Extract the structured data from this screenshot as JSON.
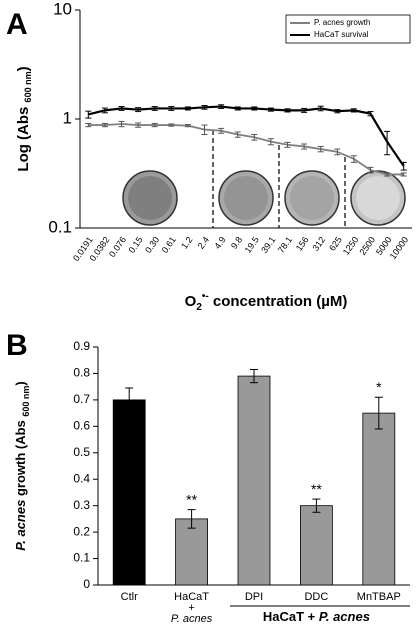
{
  "chart_data": [
    {
      "type": "line",
      "panel_label": "A",
      "y_label": [
        "Log (Abs ",
        "600 nm",
        ")"
      ],
      "x_label": [
        "O",
        "2",
        "•-",
        " concentration (µM)"
      ],
      "categories": [
        "0.0191",
        "0.0382",
        "0.076",
        "0.15",
        "0.30",
        "0.61",
        "1.2",
        "2.4",
        "4.9",
        "9.8",
        "19.5",
        "39.1",
        "78.1",
        "156",
        "312",
        "625",
        "1250",
        "2500",
        "5000",
        "10000"
      ],
      "series": [
        {
          "name": "P. acnes growth",
          "color": "#808080",
          "values": [
            0.88,
            0.88,
            0.9,
            0.88,
            0.88,
            0.88,
            0.87,
            0.8,
            0.78,
            0.72,
            0.68,
            0.62,
            0.58,
            0.56,
            0.53,
            0.5,
            0.43,
            0.34,
            0.31,
            0.31
          ],
          "errors": [
            0.03,
            0.03,
            0.05,
            0.04,
            0.03,
            0.02,
            0.02,
            0.08,
            0.04,
            0.04,
            0.04,
            0.04,
            0.03,
            0.03,
            0.03,
            0.03,
            0.03,
            0.02,
            0.01,
            0.01
          ]
        },
        {
          "name": "HaCaT survival",
          "color": "#000000",
          "values": [
            1.1,
            1.2,
            1.25,
            1.22,
            1.25,
            1.25,
            1.25,
            1.28,
            1.3,
            1.25,
            1.25,
            1.22,
            1.2,
            1.2,
            1.25,
            1.18,
            1.2,
            1.12,
            0.62,
            0.37
          ],
          "errors": [
            0.08,
            0.06,
            0.05,
            0.05,
            0.05,
            0.05,
            0.04,
            0.05,
            0.05,
            0.04,
            0.04,
            0.04,
            0.04,
            0.05,
            0.06,
            0.04,
            0.04,
            0.05,
            0.15,
            0.03
          ]
        }
      ],
      "ylim": [
        0.1,
        10
      ],
      "yticks": [
        0.1,
        1,
        10
      ],
      "log_scale": true,
      "legend": "top-right"
    },
    {
      "type": "bar",
      "panel_label": "B",
      "y_label": [
        "P. acnes",
        " growth (Abs ",
        "600 nm",
        ")"
      ],
      "categories": [
        [
          "Ctlr"
        ],
        [
          "HaCaT",
          "+",
          "P. acnes"
        ],
        [
          "DPI"
        ],
        [
          "DDC"
        ],
        [
          "MnTBAP"
        ]
      ],
      "values": [
        0.7,
        0.25,
        0.79,
        0.3,
        0.65
      ],
      "errors": [
        0.045,
        0.035,
        0.025,
        0.025,
        0.06
      ],
      "colors": [
        "#000000",
        "#999999",
        "#999999",
        "#999999",
        "#999999"
      ],
      "annotations": [
        null,
        "**",
        null,
        "**",
        "*"
      ],
      "group_label": [
        "HaCaT + ",
        "P. acnes"
      ],
      "ylim": [
        0,
        0.9
      ],
      "yticks": [
        0,
        0.1,
        0.2,
        0.3,
        0.4,
        0.5,
        0.6,
        0.7,
        0.8,
        0.9
      ]
    }
  ]
}
